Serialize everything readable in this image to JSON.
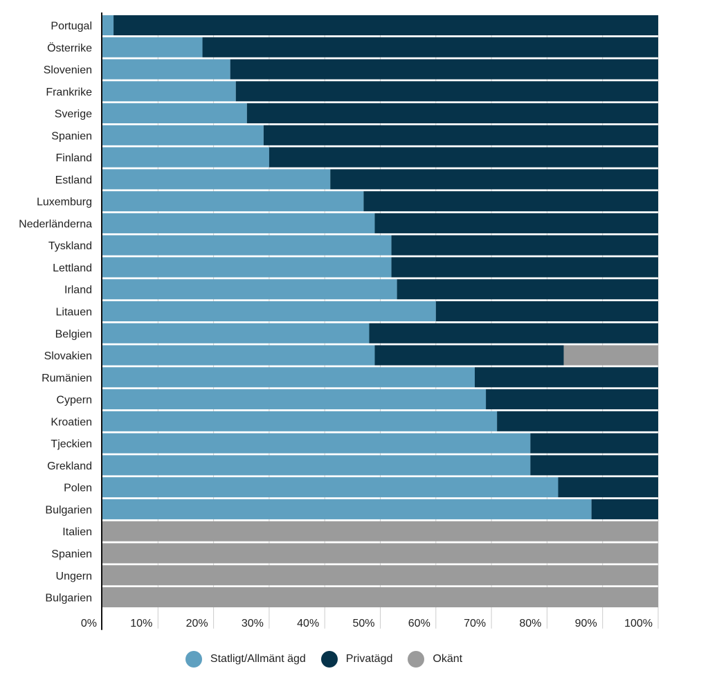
{
  "colors": {
    "public": "#5fa0c0",
    "private": "#06334a",
    "unknown": "#9b9b9b",
    "grid": "#cccccc",
    "axis": "#111111"
  },
  "chart_data": {
    "type": "bar",
    "orientation": "horizontal",
    "stacked": true,
    "categories": [
      "Portugal",
      "Österrike",
      "Slovenien",
      "Frankrike",
      "Sverige",
      "Spanien",
      "Finland",
      "Estland",
      "Luxemburg",
      "Nederländerna",
      "Tyskland",
      "Lettland",
      "Irland",
      "Litauen",
      "Belgien",
      "Slovakien",
      "Rumänien",
      "Cypern",
      "Kroatien",
      "Tjeckien",
      "Grekland",
      "Polen",
      "Bulgarien",
      "Italien",
      "Spanien",
      "Ungern",
      "Bulgarien"
    ],
    "series": [
      {
        "name": "Statligt/Allmänt ägd",
        "color_key": "public",
        "values": [
          2,
          18,
          23,
          24,
          26,
          29,
          30,
          41,
          47,
          49,
          52,
          52,
          53,
          60,
          48,
          49,
          67,
          69,
          71,
          77,
          77,
          82,
          88,
          0,
          0,
          0,
          0
        ]
      },
      {
        "name": "Privatägd",
        "color_key": "private",
        "values": [
          98,
          82,
          77,
          76,
          74,
          71,
          70,
          59,
          53,
          51,
          48,
          48,
          47,
          40,
          52,
          34,
          33,
          31,
          29,
          23,
          23,
          18,
          12,
          0,
          0,
          0,
          0
        ]
      },
      {
        "name": "Okänt",
        "color_key": "unknown",
        "values": [
          0,
          0,
          0,
          0,
          0,
          0,
          0,
          0,
          0,
          0,
          0,
          0,
          0,
          0,
          0,
          17,
          0,
          0,
          0,
          0,
          0,
          0,
          0,
          100,
          100,
          100,
          100
        ]
      }
    ],
    "xlim": [
      0,
      100
    ],
    "xticks": [
      "0%",
      "10%",
      "20%",
      "30%",
      "40%",
      "50%",
      "60%",
      "70%",
      "80%",
      "90%",
      "100%"
    ],
    "grid": true,
    "legend_position": "bottom-center"
  }
}
